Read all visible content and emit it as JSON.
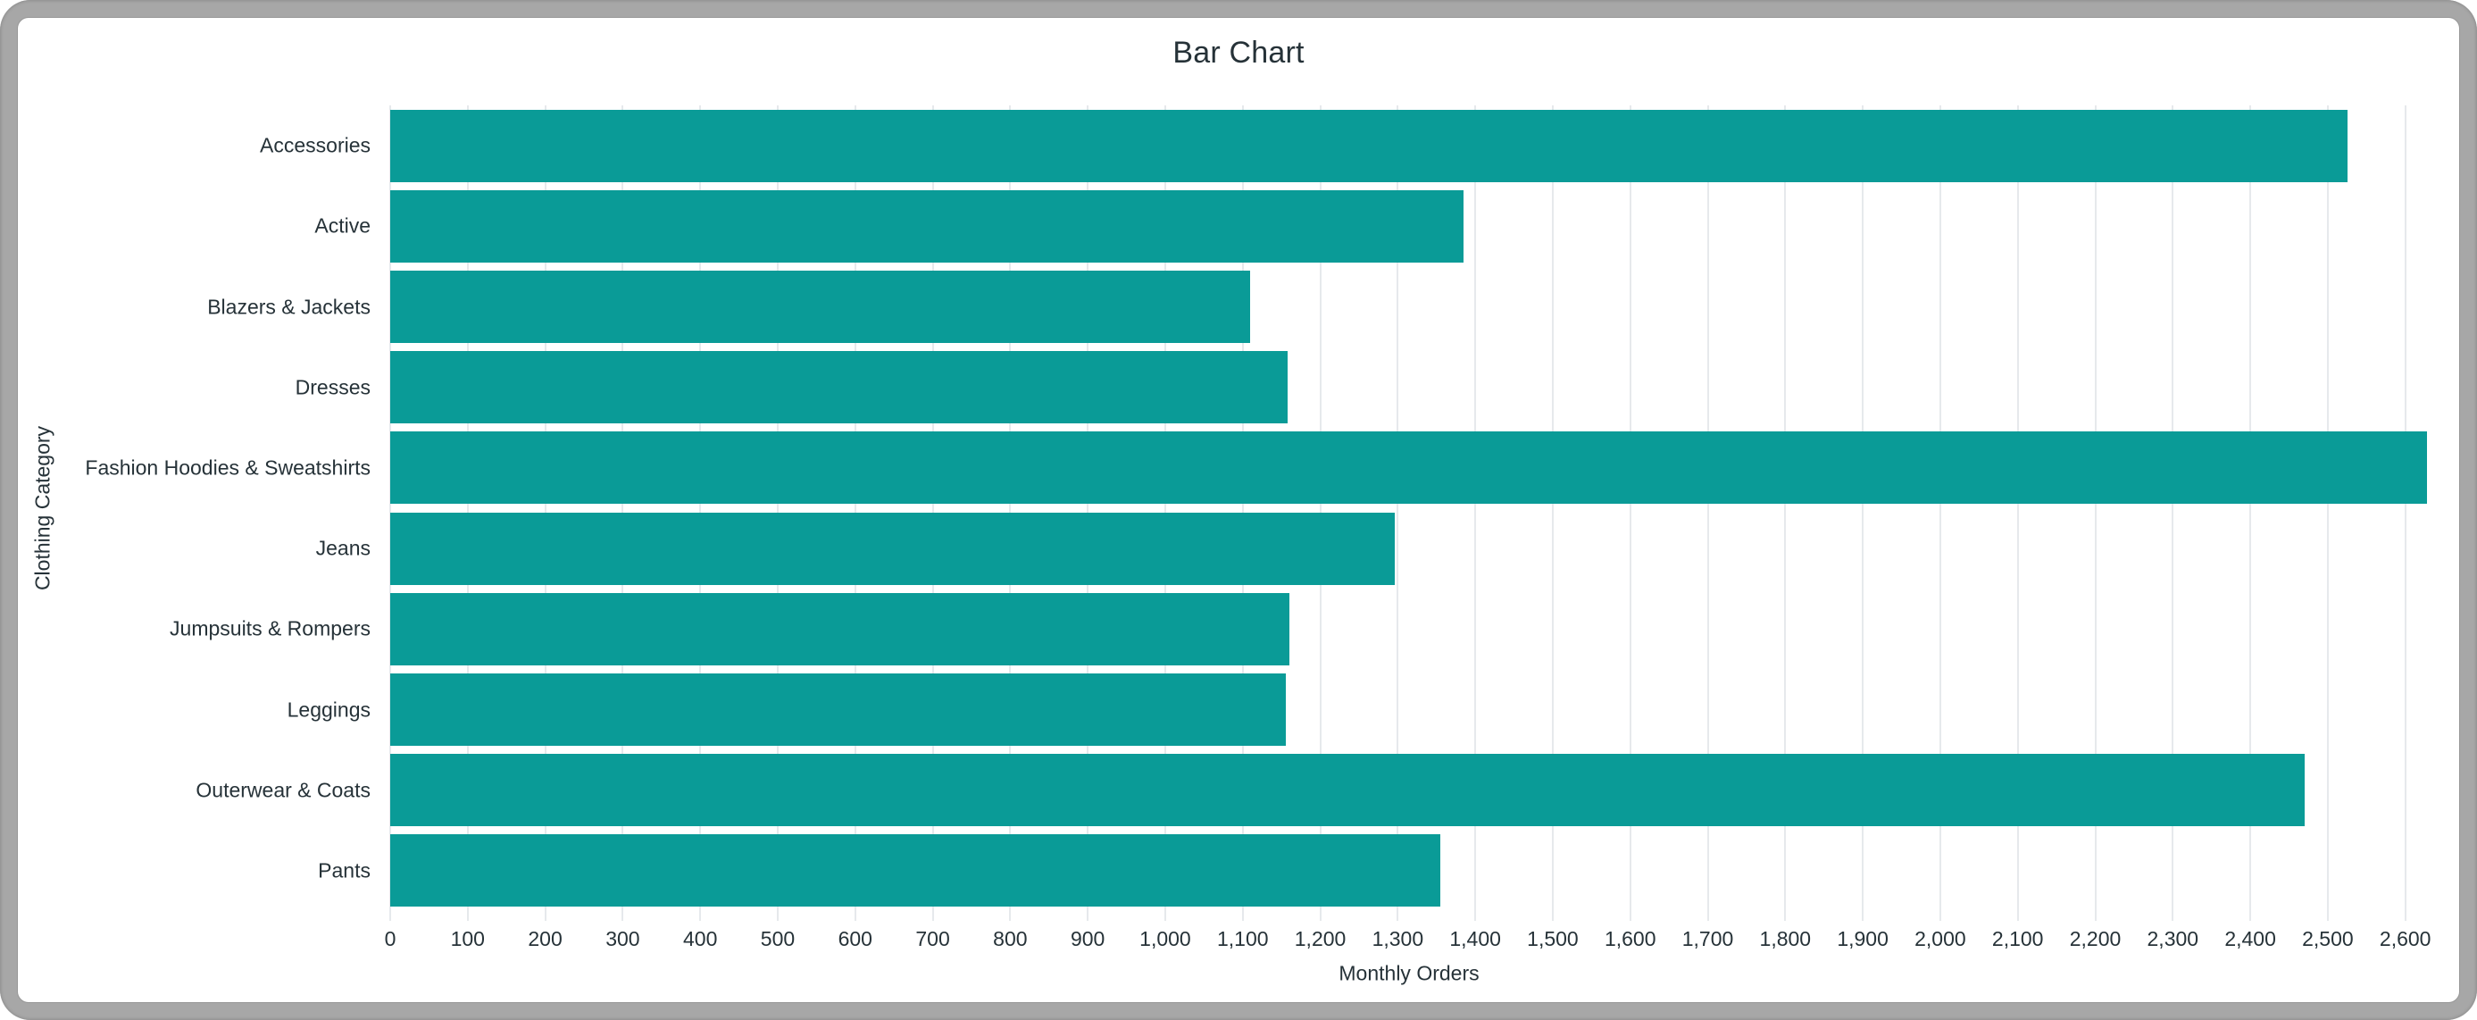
{
  "window": {
    "frame_color": "#a7a7a7",
    "background": "#ffffff"
  },
  "chart_data": {
    "type": "bar",
    "orientation": "horizontal",
    "title": "Bar Chart",
    "xlabel": "Monthly Orders",
    "ylabel": "Clothing Category",
    "categories": [
      "Accessories",
      "Active",
      "Blazers & Jackets",
      "Dresses",
      "Fashion Hoodies & Sweatshirts",
      "Jeans",
      "Jumpsuits & Rompers",
      "Leggings",
      "Outerwear & Coats",
      "Pants"
    ],
    "values": [
      2525,
      1385,
      1110,
      1158,
      2628,
      1296,
      1160,
      1156,
      2470,
      1355
    ],
    "xlim": [
      0,
      2628
    ],
    "xticks": {
      "start": 0,
      "end": 2600,
      "interval": 100
    },
    "tick_format": "thousands-comma",
    "grid": true,
    "legend_position": "none",
    "colors": {
      "bar": "#0a9b97",
      "grid": "#e6e9ec",
      "text": "#263238",
      "title": "#263238"
    }
  }
}
